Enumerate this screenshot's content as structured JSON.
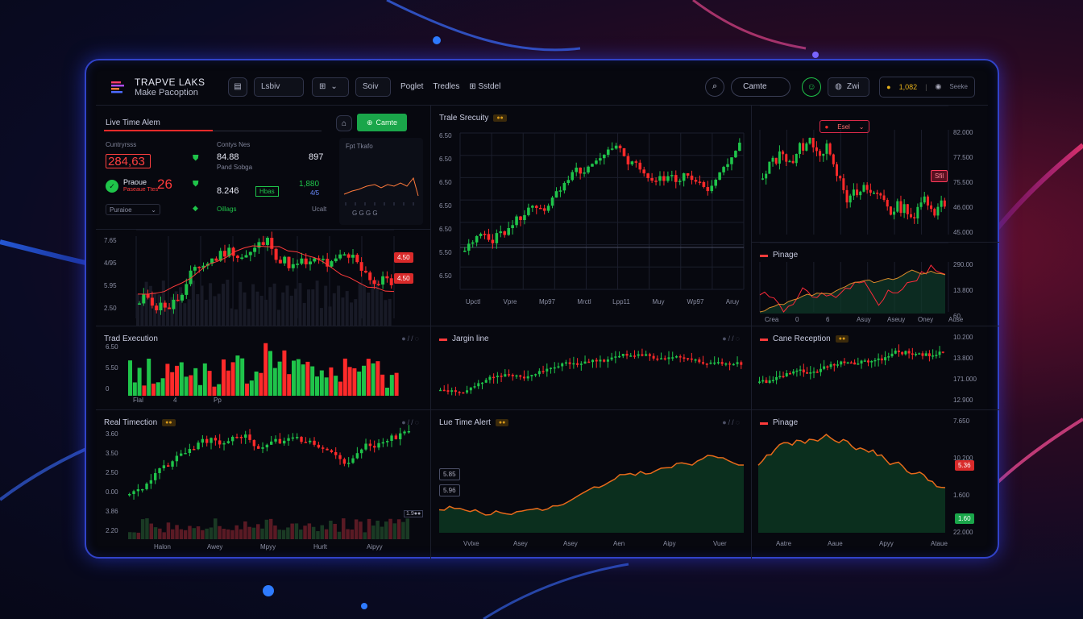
{
  "header": {
    "brand_line1": "TRAPVE LAKS",
    "brand_line2": "Make Pacoption",
    "btn_1": "Lsbiv",
    "btn_2": "Soiv",
    "nav": [
      "Poglet",
      "Tredles",
      "Sstdel"
    ],
    "search_label": "Camte",
    "account_balance": "1,082",
    "account_sub": "Seeke"
  },
  "alerts_panel": {
    "title": "Live Time Alem",
    "create_btn": "Camte",
    "col_label_1": "Cuntryrsss",
    "col_label_2": "Contys Nes",
    "main_value": "284,63",
    "value_2": "84.88",
    "value_2_sub": "Pand Sobga",
    "value_3": "897",
    "row2_label": "Praoue",
    "row2_sub": "Paseaue Ttes",
    "row2_value": "26",
    "value_4": "8.246",
    "badge_4": "Hbas",
    "value_5": "1,880",
    "value_5_sub": "4/5",
    "dropdown": "Puraioe",
    "footer_mid": "Oillags",
    "footer_right": "Ucalt",
    "spark_title": "Fpt Tkafo",
    "spark_footer": "G  G  G  G"
  },
  "main_candle": {
    "y_labels": [
      "7.65",
      "4/95",
      "5.95",
      "2.50"
    ],
    "price_tag_1": "4.50",
    "price_tag_2": "4.50"
  },
  "trade_security": {
    "title": "Trale Srecuity",
    "tag": "●●",
    "y_labels": [
      "6.50",
      "6.50",
      "6.50",
      "6.50",
      "6.50",
      "5.50",
      "6.50"
    ],
    "x_labels": [
      "Upctl",
      "Vpre",
      "Mp97",
      "Mrctl",
      "Lpp11",
      "Muy",
      "Wp97",
      "Aruy"
    ]
  },
  "right_top": {
    "select": "Esel",
    "price_tag": "Sfil",
    "y_labels": [
      "82.000",
      "77.500",
      "75.500",
      "46.000",
      "45.000"
    ]
  },
  "right_mid": {
    "title": "Pinage",
    "y_labels": [
      "290.00",
      "13.800",
      "60"
    ],
    "x_labels": [
      "Crea",
      "0",
      "6",
      "Asuy",
      "Aseuy",
      "Oney",
      "Ause"
    ]
  },
  "trad_execution": {
    "title": "Trad Execution",
    "y_labels": [
      "6.50",
      "5.50",
      "0"
    ],
    "x_labels": [
      "Flal",
      "4",
      "Pp"
    ]
  },
  "margin_line": {
    "title": "Jargin line"
  },
  "cane_reception": {
    "title": "Cane Reception",
    "tag": "●●",
    "y_labels": [
      "10.200",
      "13.800",
      "171.000",
      "12.900"
    ]
  },
  "real_timection": {
    "title": "Real Timection",
    "tag": "●●",
    "y_labels": [
      "3.60",
      "3.50",
      "2.50",
      "0.00",
      "3.86",
      "2.20"
    ],
    "x_labels": [
      "Halon",
      "Awey",
      "Mpyy",
      "Hurlt",
      "Aipyy"
    ],
    "corner_tag": "1.9●●"
  },
  "lue_alert": {
    "title": "Lue Time Alert",
    "tag": "●●",
    "price_tag_1": "5.85",
    "price_tag_2": "5.96",
    "x_labels": [
      "Vvlxe",
      "Asey",
      "Asey",
      "Aen",
      "Aipy",
      "Vuer"
    ]
  },
  "range_panel": {
    "title": "Pinage",
    "y_labels": [
      "7.650",
      "10.200",
      "1.600",
      "22.000"
    ],
    "price_tag_red": "5.36",
    "price_tag_green": "1.60",
    "x_labels": [
      "Aatre",
      "Aaue",
      "Apyy",
      "Ataue"
    ]
  },
  "colors": {
    "up": "#1fc44a",
    "down": "#ff2a2a",
    "accent_border": "#3143c9",
    "grid": "#1b1e2c"
  }
}
